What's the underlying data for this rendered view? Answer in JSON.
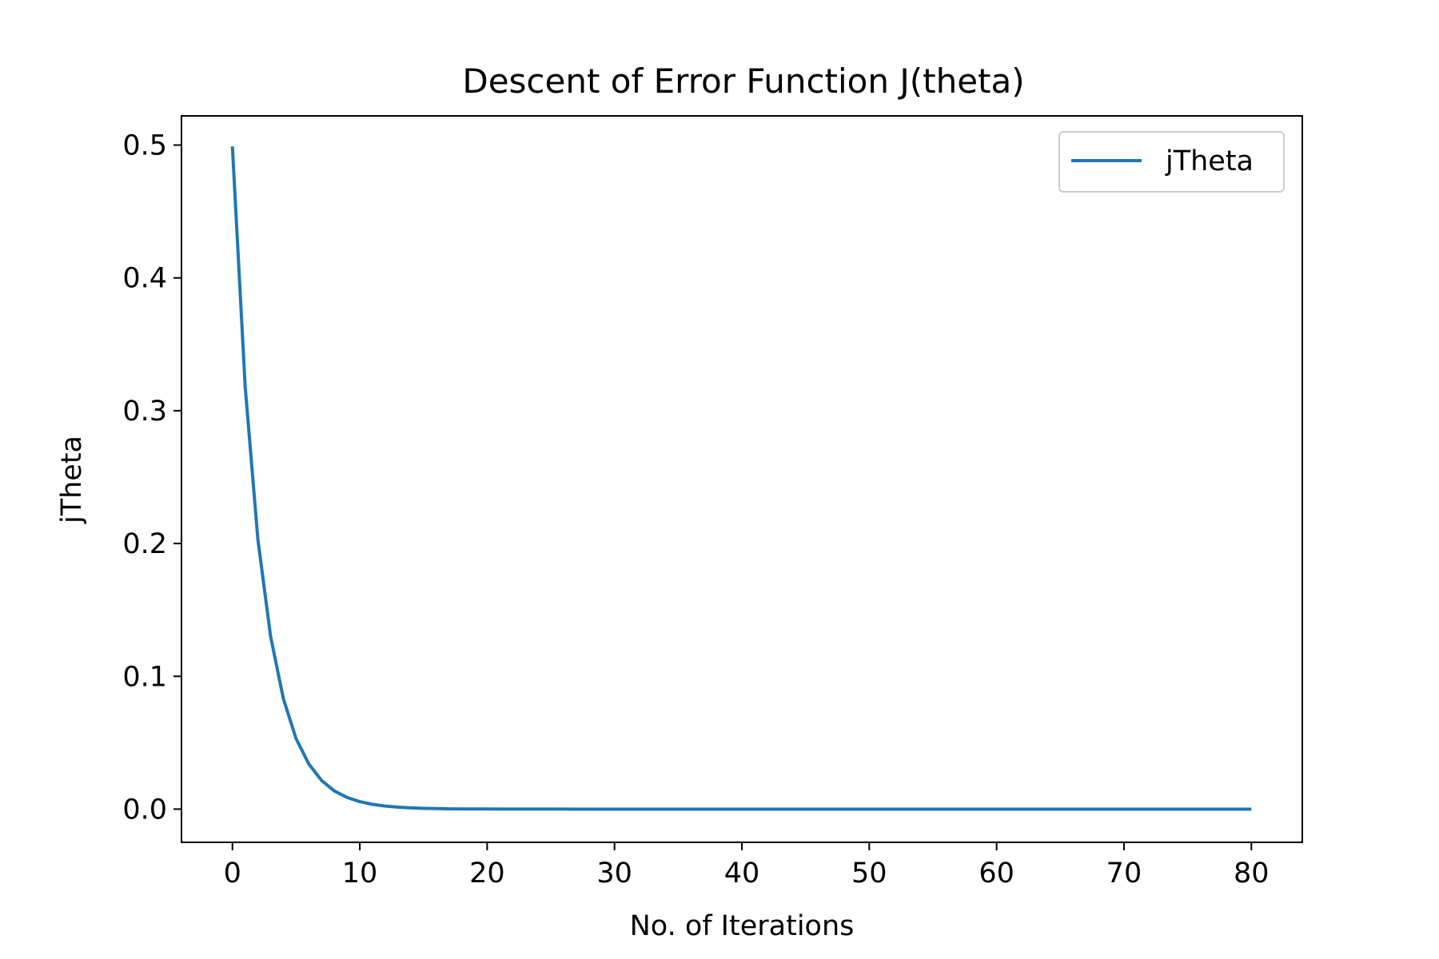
{
  "chart_data": {
    "type": "line",
    "title": "Descent of Error Function J(theta)",
    "xlabel": "No. of Iterations",
    "ylabel": "jTheta",
    "xlim": [
      -4,
      84
    ],
    "ylim": [
      -0.025,
      0.522
    ],
    "xticks": [
      0,
      10,
      20,
      30,
      40,
      50,
      60,
      70,
      80
    ],
    "xtick_labels": [
      "0",
      "10",
      "20",
      "30",
      "40",
      "50",
      "60",
      "70",
      "80"
    ],
    "yticks": [
      0.0,
      0.1,
      0.2,
      0.3,
      0.4,
      0.5
    ],
    "ytick_labels": [
      "0.0",
      "0.1",
      "0.2",
      "0.3",
      "0.4",
      "0.5"
    ],
    "grid": false,
    "legend": {
      "position": "top-right",
      "entries": [
        "jTheta"
      ]
    },
    "series": [
      {
        "name": "jTheta",
        "color": "#1f77b4",
        "x": [
          0,
          1,
          2,
          3,
          4,
          5,
          6,
          7,
          8,
          9,
          10,
          11,
          12,
          13,
          14,
          15,
          16,
          17,
          18,
          19,
          20,
          21,
          22,
          23,
          24,
          25,
          26,
          27,
          28,
          29,
          30,
          31,
          32,
          33,
          34,
          35,
          36,
          37,
          38,
          39,
          40,
          41,
          42,
          43,
          44,
          45,
          46,
          47,
          48,
          49,
          50,
          51,
          52,
          53,
          54,
          55,
          56,
          57,
          58,
          59,
          60,
          61,
          62,
          63,
          64,
          65,
          66,
          67,
          68,
          69,
          70,
          71,
          72,
          73,
          74,
          75,
          76,
          77,
          78,
          79,
          80
        ],
        "y": [
          0.499,
          0.318,
          0.203,
          0.13,
          0.083,
          0.053,
          0.034,
          0.0215,
          0.0137,
          0.0088,
          0.0056,
          0.0036,
          0.0023,
          0.0015,
          0.00094,
          0.0006,
          0.00038,
          0.00024,
          0.00016,
          0.0001,
          6.4e-05,
          4.1e-05,
          2.6e-05,
          1.7e-05,
          1.1e-05,
          7e-06,
          4.4e-06,
          2.8e-06,
          1.8e-06,
          1.1e-06,
          7e-07,
          4.5e-07,
          2.9e-07,
          1.8e-07,
          1.2e-07,
          7e-08,
          5e-08,
          3e-08,
          2e-08,
          1e-08,
          1e-08,
          0,
          0,
          0,
          0,
          0,
          0,
          0,
          0,
          0,
          0,
          0,
          0,
          0,
          0,
          0,
          0,
          0,
          0,
          0,
          0,
          0,
          0,
          0,
          0,
          0,
          0,
          0,
          0,
          0,
          0,
          0,
          0,
          0,
          0,
          0,
          0,
          0,
          0,
          0,
          0
        ]
      }
    ]
  }
}
